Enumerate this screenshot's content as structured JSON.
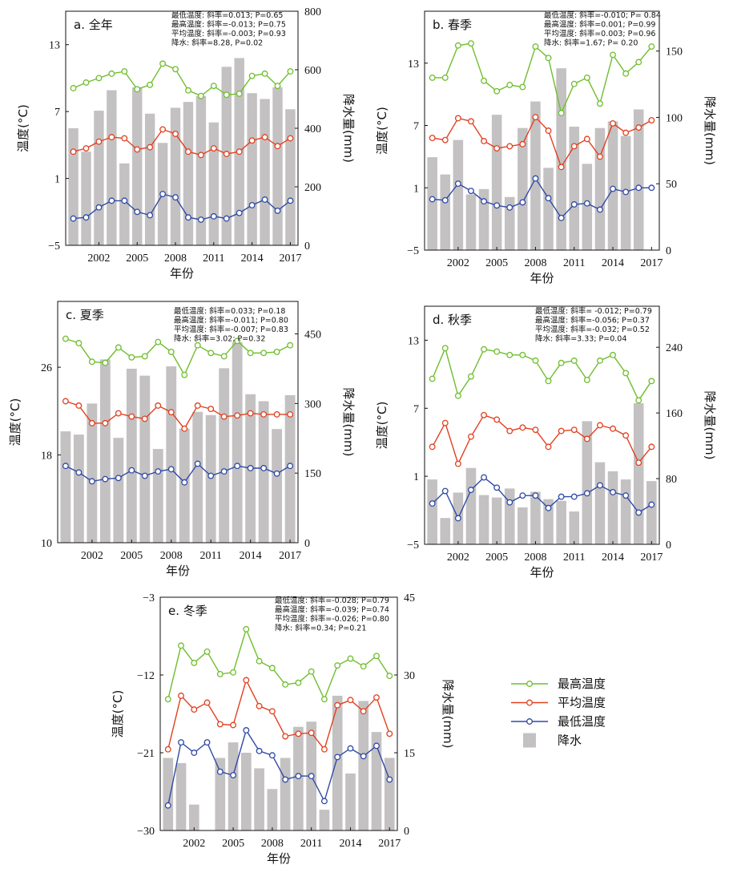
{
  "legend": [
    {
      "key": "max",
      "label": "最高温度",
      "color": "#6fbe2e",
      "marker": "open-circle-line"
    },
    {
      "key": "mean",
      "label": "平均温度",
      "color": "#e2401f",
      "marker": "open-circle-line"
    },
    {
      "key": "min",
      "label": "最低温度",
      "color": "#2f4aa6",
      "marker": "open-circle-line"
    },
    {
      "key": "precip",
      "label": "降水",
      "color": "#c4c1c2",
      "marker": "bar"
    }
  ],
  "chart_data": [
    {
      "type": "bar+line",
      "title": "a. 全年",
      "xlabel": "年份",
      "ylabel_left": "温度(°C)",
      "ylabel_right": "降水量(mm)",
      "x": [
        2000,
        2001,
        2002,
        2003,
        2004,
        2005,
        2006,
        2007,
        2008,
        2009,
        2010,
        2011,
        2012,
        2013,
        2014,
        2015,
        2016,
        2017
      ],
      "xticks": [
        "2002",
        "2005",
        "2008",
        "2011",
        "2014",
        "2017"
      ],
      "ylim_left": [
        -5,
        16
      ],
      "yticks_left": [
        "-5",
        "1",
        "7",
        "13"
      ],
      "ylim_right": [
        0,
        800
      ],
      "yticks_right": [
        "0",
        "200",
        "400",
        "600",
        "800"
      ],
      "annotations": [
        "最低温度: 斜率=0.013; P=0.65",
        "最高温度: 斜率=-0.013; P=0.75",
        "平均温度: 斜率=-0.003; P=0.93",
        "降水: 斜率=8.28, P=0.02"
      ],
      "series": [
        {
          "key": "max",
          "values": [
            9.1,
            9.6,
            10.0,
            10.4,
            10.6,
            9.0,
            9.4,
            11.3,
            10.8,
            8.9,
            8.4,
            9.3,
            8.5,
            8.6,
            10.2,
            10.4,
            9.3,
            10.6
          ]
        },
        {
          "key": "mean",
          "values": [
            3.4,
            3.7,
            4.3,
            4.7,
            4.6,
            3.6,
            3.8,
            5.4,
            5.0,
            3.4,
            3.1,
            3.7,
            3.2,
            3.4,
            4.4,
            4.7,
            3.9,
            4.6
          ]
        },
        {
          "key": "min",
          "values": [
            -2.6,
            -2.5,
            -1.6,
            -1.0,
            -1.0,
            -2.0,
            -2.3,
            -0.4,
            -0.7,
            -2.5,
            -2.7,
            -2.4,
            -2.6,
            -2.1,
            -1.4,
            -0.9,
            -1.9,
            -1.0
          ]
        },
        {
          "key": "precip",
          "values": [
            400,
            320,
            460,
            530,
            280,
            540,
            450,
            350,
            470,
            490,
            510,
            420,
            610,
            640,
            520,
            500,
            540,
            465
          ]
        }
      ]
    },
    {
      "type": "bar+line",
      "title": "b. 春季",
      "xlabel": "年份",
      "ylabel_left": "温度(°C)",
      "ylabel_right": "降水量(mm)",
      "x": [
        2000,
        2001,
        2002,
        2003,
        2004,
        2005,
        2006,
        2007,
        2008,
        2009,
        2010,
        2011,
        2012,
        2013,
        2014,
        2015,
        2016,
        2017
      ],
      "xticks": [
        "2002",
        "2005",
        "2008",
        "2011",
        "2014",
        "2017"
      ],
      "ylim_left": [
        -5,
        18
      ],
      "yticks_left": [
        "-5",
        "1",
        "7",
        "13"
      ],
      "ylim_right": [
        0,
        180
      ],
      "yticks_right": [
        "0",
        "50",
        "100",
        "150"
      ],
      "annotations": [
        "最低温度: 斜率=-0.010; P= 0.84",
        "最高温度: 斜率=0.001; P=0.99",
        "平均温度: 斜率=0.003; P=0.96",
        "降水: 斜率=1.67; P= 0.20"
      ],
      "series": [
        {
          "key": "max",
          "values": [
            11.6,
            11.6,
            14.7,
            14.9,
            11.3,
            10.3,
            10.9,
            10.7,
            14.6,
            13.5,
            8.2,
            11.0,
            11.6,
            9.1,
            13.8,
            12.0,
            13.1,
            14.6
          ]
        },
        {
          "key": "mean",
          "values": [
            5.8,
            5.6,
            7.7,
            7.4,
            5.5,
            4.8,
            5.0,
            5.2,
            7.8,
            6.5,
            3.0,
            5.0,
            5.7,
            4.0,
            7.2,
            6.3,
            6.8,
            7.5
          ]
        },
        {
          "key": "min",
          "values": [
            -0.1,
            -0.2,
            1.4,
            0.7,
            -0.3,
            -0.7,
            -0.9,
            -0.4,
            1.9,
            0.0,
            -1.9,
            -0.6,
            -0.5,
            -1.1,
            0.9,
            0.6,
            1.0,
            1.0
          ]
        },
        {
          "key": "precip",
          "values": [
            70,
            57,
            83,
            42,
            46,
            102,
            40,
            92,
            112,
            62,
            137,
            93,
            65,
            92,
            97,
            86,
            106,
            0
          ]
        }
      ]
    },
    {
      "type": "bar+line",
      "title": "c. 夏季",
      "xlabel": "年份",
      "ylabel_left": "温度(°C)",
      "ylabel_right": "降水量(mm)",
      "x": [
        2000,
        2001,
        2002,
        2003,
        2004,
        2005,
        2006,
        2007,
        2008,
        2009,
        2010,
        2011,
        2012,
        2013,
        2014,
        2015,
        2016,
        2017
      ],
      "xticks": [
        "2002",
        "2005",
        "2008",
        "2011",
        "2014",
        "2017"
      ],
      "ylim_left": [
        10,
        32
      ],
      "yticks_left": [
        "10",
        "18",
        "26"
      ],
      "ylim_right": [
        0,
        520
      ],
      "yticks_right": [
        "0",
        "150",
        "300",
        "450"
      ],
      "annotations": [
        "最低温度: 斜率=0.033; P=0.18",
        "最高温度: 斜率=-0.011; P=0.80",
        "平均温度: 斜率=-0.007; P=0.83",
        "降水: 斜率=3.02; P=0.32"
      ],
      "series": [
        {
          "key": "max",
          "values": [
            28.6,
            28.2,
            26.5,
            26.4,
            27.8,
            26.9,
            27.0,
            28.3,
            27.4,
            25.3,
            28.0,
            27.3,
            27.0,
            28.4,
            27.3,
            27.3,
            27.4,
            28.0
          ]
        },
        {
          "key": "mean",
          "values": [
            22.9,
            22.5,
            20.9,
            20.9,
            21.8,
            21.5,
            21.3,
            22.5,
            21.9,
            20.4,
            22.5,
            22.2,
            21.5,
            21.6,
            21.8,
            21.7,
            21.7,
            21.7
          ]
        },
        {
          "key": "min",
          "values": [
            17.0,
            16.4,
            15.6,
            15.8,
            15.9,
            16.6,
            16.1,
            16.5,
            16.7,
            15.5,
            17.2,
            16.1,
            16.5,
            17.0,
            16.8,
            16.8,
            16.3,
            17.0
          ]
        },
        {
          "key": "precip",
          "values": [
            240,
            233,
            300,
            395,
            226,
            375,
            360,
            202,
            380,
            246,
            282,
            275,
            376,
            432,
            320,
            305,
            245,
            318
          ]
        }
      ]
    },
    {
      "type": "bar+line",
      "title": "d. 秋季",
      "xlabel": "年份",
      "ylabel_left": "温度(°C)",
      "ylabel_right": "降水量(mm)",
      "x": [
        2000,
        2001,
        2002,
        2003,
        2004,
        2005,
        2006,
        2007,
        2008,
        2009,
        2010,
        2011,
        2012,
        2013,
        2014,
        2015,
        2016,
        2017
      ],
      "xticks": [
        "2002",
        "2005",
        "2008",
        "2011",
        "2014",
        "2017"
      ],
      "ylim_left": [
        -5,
        16
      ],
      "yticks_left": [
        "-5",
        "1",
        "7",
        "13"
      ],
      "ylim_right": [
        0,
        290
      ],
      "yticks_right": [
        "0",
        "80",
        "160",
        "240"
      ],
      "annotations": [
        "最低温度: 斜率= -0.012; P=0.79",
        "最高温度: 斜率=-0.056; P=0.37",
        "平均温度: 斜率=-0.032; P=0.52",
        "降水: 斜率=3.33; P=0.04"
      ],
      "series": [
        {
          "key": "max",
          "values": [
            9.6,
            12.3,
            8.1,
            9.8,
            12.2,
            12.0,
            11.7,
            11.7,
            11.2,
            9.4,
            11.0,
            11.2,
            9.5,
            11.2,
            11.7,
            10.1,
            7.7,
            9.4
          ]
        },
        {
          "key": "mean",
          "values": [
            3.6,
            5.7,
            2.1,
            4.5,
            6.4,
            6.0,
            5.0,
            5.3,
            5.1,
            3.6,
            5.0,
            5.1,
            4.3,
            5.5,
            5.2,
            4.6,
            2.2,
            3.6
          ]
        },
        {
          "key": "min",
          "values": [
            -1.4,
            -0.3,
            -2.7,
            -0.2,
            0.9,
            0.0,
            -1.3,
            -0.7,
            -0.7,
            -1.8,
            -0.8,
            -0.8,
            -0.5,
            0.2,
            -0.4,
            -0.7,
            -2.2,
            -1.5
          ]
        },
        {
          "key": "precip",
          "values": [
            79,
            32,
            63,
            93,
            60,
            57,
            68,
            45,
            64,
            55,
            53,
            40,
            150,
            100,
            89,
            79,
            172,
            77
          ]
        }
      ]
    },
    {
      "type": "bar+line",
      "title": "e. 冬季",
      "xlabel": "年份",
      "ylabel_left": "温度(°C)",
      "ylabel_right": "降水量(mm)",
      "x": [
        2000,
        2001,
        2002,
        2003,
        2004,
        2005,
        2006,
        2007,
        2008,
        2009,
        2010,
        2011,
        2012,
        2013,
        2014,
        2015,
        2016,
        2017
      ],
      "xticks": [
        "2002",
        "2005",
        "2008",
        "2011",
        "2014",
        "2017"
      ],
      "ylim_left": [
        -30,
        -3
      ],
      "yticks_left": [
        "-30",
        "-21",
        "-12",
        "-3"
      ],
      "ylim_right": [
        0,
        45
      ],
      "yticks_right": [
        "0",
        "15",
        "30",
        "45"
      ],
      "annotations": [
        "最低温度: 斜率=-0.028; P=0.79",
        "最高温度: 斜率=-0.039; P=0.74",
        "平均温度: 斜率=-0.026; P=0.80",
        "降水: 斜率=0.34; P=0.21"
      ],
      "series": [
        {
          "key": "max",
          "values": [
            -14.8,
            -8.6,
            -10.6,
            -9.3,
            -11.9,
            -11.7,
            -6.7,
            -10.4,
            -11.2,
            -13.1,
            -12.9,
            -11.6,
            -14.8,
            -10.9,
            -10.1,
            -11.0,
            -9.8,
            -12.1
          ]
        },
        {
          "key": "mean",
          "values": [
            -20.6,
            -14.4,
            -16.0,
            -15.2,
            -17.7,
            -17.8,
            -12.6,
            -15.6,
            -16.2,
            -19.1,
            -18.8,
            -18.7,
            -20.6,
            -15.5,
            -14.9,
            -16.2,
            -14.6,
            -18.8
          ]
        },
        {
          "key": "min",
          "values": [
            -27.1,
            -19.8,
            -21.0,
            -19.8,
            -23.2,
            -23.6,
            -18.4,
            -20.8,
            -21.3,
            -24.1,
            -23.7,
            -23.7,
            -26.6,
            -21.5,
            -20.5,
            -21.4,
            -20.2,
            -24.1
          ]
        },
        {
          "key": "precip",
          "values": [
            14,
            13,
            5,
            0,
            14,
            17,
            15,
            12,
            8,
            14,
            20,
            21,
            4,
            26,
            11,
            25,
            19,
            14
          ]
        }
      ]
    }
  ]
}
